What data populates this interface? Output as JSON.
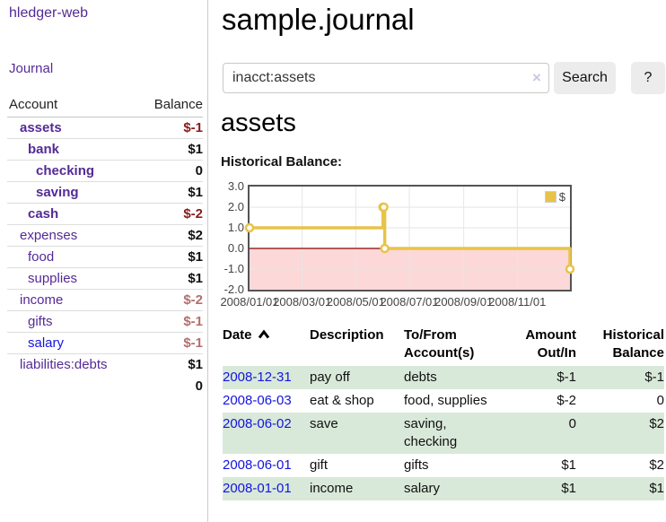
{
  "app": {
    "brand": "hledger-web",
    "nav_journal": "Journal"
  },
  "header": {
    "title": "sample.journal"
  },
  "search": {
    "value": "inacct:assets",
    "clear_icon": "×",
    "button_label": "Search",
    "help_label": "?"
  },
  "main": {
    "account_heading": "assets",
    "section_label": "Historical Balance:"
  },
  "sidebar": {
    "accounts": {
      "header_account": "Account",
      "header_balance": "Balance",
      "rows": [
        {
          "name": "assets",
          "balance": "$-1",
          "depth": 1,
          "bold": true,
          "link": "purple",
          "neg": "strong"
        },
        {
          "name": "bank",
          "balance": "$1",
          "depth": 2,
          "bold": true,
          "link": "purple",
          "neg": "none"
        },
        {
          "name": "checking",
          "balance": "0",
          "depth": 3,
          "bold": true,
          "link": "purple",
          "neg": "none"
        },
        {
          "name": "saving",
          "balance": "$1",
          "depth": 3,
          "bold": true,
          "link": "purple",
          "neg": "none"
        },
        {
          "name": "cash",
          "balance": "$-2",
          "depth": 2,
          "bold": true,
          "link": "purple",
          "neg": "strong"
        },
        {
          "name": "expenses",
          "balance": "$2",
          "depth": 1,
          "bold": false,
          "link": "purple",
          "neg": "none"
        },
        {
          "name": "food",
          "balance": "$1",
          "depth": 2,
          "bold": false,
          "link": "purple",
          "neg": "none"
        },
        {
          "name": "supplies",
          "balance": "$1",
          "depth": 2,
          "bold": false,
          "link": "purple",
          "neg": "none"
        },
        {
          "name": "income",
          "balance": "$-2",
          "depth": 1,
          "bold": false,
          "link": "purple",
          "neg": "soft"
        },
        {
          "name": "gifts",
          "balance": "$-1",
          "depth": 2,
          "bold": false,
          "link": "purple",
          "neg": "soft"
        },
        {
          "name": "salary",
          "balance": "$-1",
          "depth": 2,
          "bold": false,
          "link": "blue",
          "neg": "soft"
        },
        {
          "name": "liabilities:debts",
          "balance": "$1",
          "depth": 1,
          "bold": false,
          "link": "purple",
          "neg": "none"
        }
      ],
      "total": "0"
    }
  },
  "chart_data": {
    "type": "line",
    "step": true,
    "title": "Historical Balance",
    "series": [
      {
        "name": "$",
        "points": [
          [
            "2008-01-01",
            1
          ],
          [
            "2008-06-01",
            2
          ],
          [
            "2008-06-02",
            2
          ],
          [
            "2008-06-03",
            0
          ],
          [
            "2008-12-31",
            -1
          ]
        ]
      }
    ],
    "x_range": [
      "2008-01-01",
      "2008-12-31"
    ],
    "x_ticks": [
      "2008/01/01",
      "2008/03/01",
      "2008/05/01",
      "2008/07/01",
      "2008/09/01",
      "2008/11/01"
    ],
    "y_ticks": [
      3.0,
      2.0,
      1.0,
      0.0,
      -1.0,
      -2.0
    ],
    "ylim": [
      -2,
      3
    ],
    "grid": true,
    "legend_position": "top-right",
    "negative_region_shaded": true
  },
  "register": {
    "columns": [
      {
        "key": "date",
        "label": "Date",
        "sortable": true,
        "sorted": "asc"
      },
      {
        "key": "description",
        "label": "Description"
      },
      {
        "key": "tofrom",
        "label": "To/From Account(s)"
      },
      {
        "key": "amount",
        "label": "Amount Out/In",
        "align": "right"
      },
      {
        "key": "balance",
        "label": "Historical Balance",
        "align": "right"
      }
    ],
    "rows": [
      {
        "date": "2008-12-31",
        "description": "pay off",
        "accounts": "debts",
        "amount": "$-1",
        "balance": "$-1"
      },
      {
        "date": "2008-06-03",
        "description": "eat & shop",
        "accounts": "food, supplies",
        "amount": "$-2",
        "balance": "0"
      },
      {
        "date": "2008-06-02",
        "description": "save",
        "accounts": "saving, checking",
        "amount": "0",
        "balance": "$2"
      },
      {
        "date": "2008-06-01",
        "description": "gift",
        "accounts": "gifts",
        "amount": "$1",
        "balance": "$2"
      },
      {
        "date": "2008-01-01",
        "description": "income",
        "accounts": "salary",
        "amount": "$1",
        "balance": "$1"
      }
    ]
  },
  "colors": {
    "link-purple": "#552a96",
    "link-blue": "#1414e0",
    "neg-strong": "#8b1a1a",
    "neg-soft": "#b46e6e",
    "row-green": "#d9e9d9",
    "chart-gold": "#e8c34a",
    "chart-negative-region": "#fcd8d8",
    "chart-zero-line": "#8b0000",
    "button-bg": "#ececec"
  }
}
